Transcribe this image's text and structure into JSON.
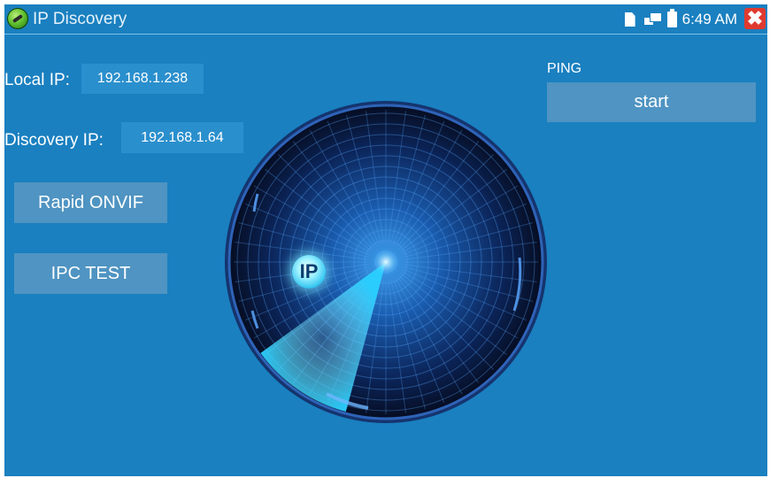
{
  "titlebar": {
    "title": "IP Discovery",
    "time": "6:49 AM",
    "close_glyph": "✖"
  },
  "local_ip": {
    "label": "Local IP:",
    "value": "192.168.1.238"
  },
  "discovery_ip": {
    "label": "Discovery IP:",
    "value": "192.168.1.64"
  },
  "buttons": {
    "rapid_onvif": "Rapid ONVIF",
    "ipc_test": "IPC TEST"
  },
  "ping": {
    "label": "PING",
    "start": "start"
  },
  "radar": {
    "badge": "IP"
  },
  "colors": {
    "background": "#1a80c0",
    "button": "#4f94c2",
    "field": "#2a8fcd",
    "close": "#e03a2f"
  },
  "icons": [
    "app-icon",
    "sd-card-icon",
    "network-icon",
    "battery-icon",
    "close-icon"
  ]
}
